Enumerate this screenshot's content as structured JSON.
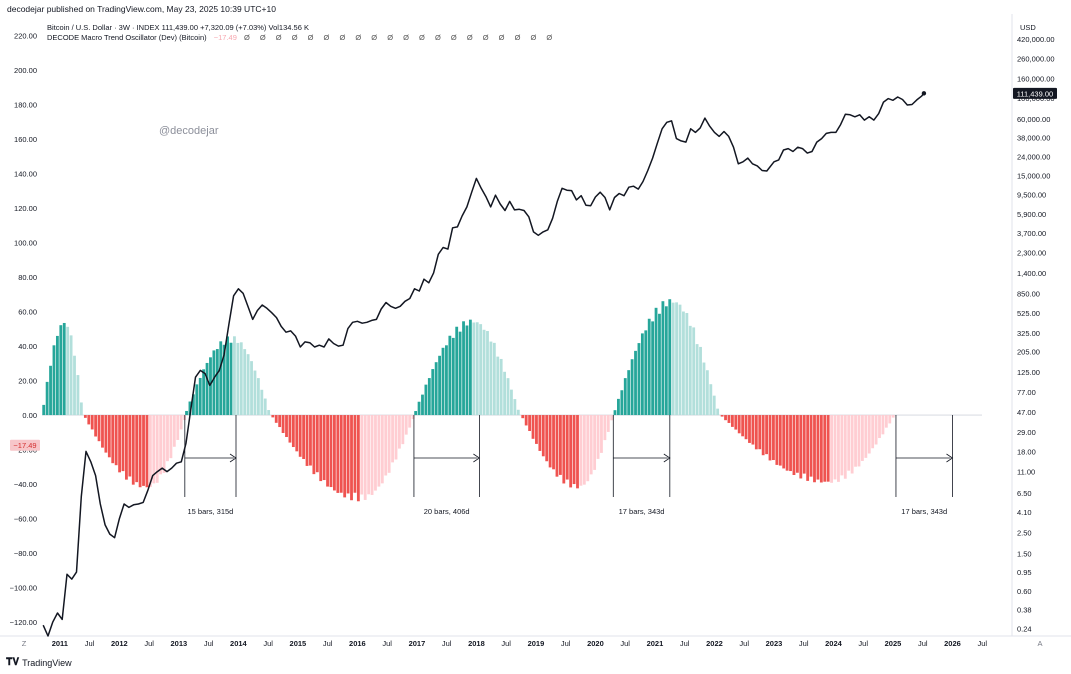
{
  "header": {
    "publisher_line": "decodejar published on TradingView.com, May 23, 2025 10:39 UTC+10",
    "logo_text": "TradingView"
  },
  "legend": {
    "price_line": "Bitcoin / U.S. Dollar · 3W · INDEX  111,439.00  +7,320.09 (+7.03%)  Vol134.56 K",
    "oscillator_name": "DECODE Macro Trend Oscillator (Dev) (Bitcoin)",
    "oscillator_value": "−17.49",
    "oscillator_extra": "Ø Ø Ø Ø Ø Ø Ø Ø Ø Ø Ø Ø Ø Ø Ø Ø Ø Ø Ø Ø"
  },
  "watermark": "@decodejar",
  "right_axis_currency": "USD",
  "colors": {
    "bull_strong": "#26a69a",
    "bull_weak": "#b2dfdb",
    "bear_strong": "#ef5350",
    "bear_weak": "#ffcdd2",
    "price_line": "#131722",
    "badge_dark": "#131722",
    "badge_red": "#f7c6c9"
  },
  "chart_data": {
    "type": "bar",
    "title": "DECODE Macro Trend Oscillator (Dev) (Bitcoin)",
    "left_axis": {
      "ticks": [
        "220.00",
        "200.00",
        "180.00",
        "160.00",
        "140.00",
        "120.00",
        "100.00",
        "80.00",
        "60.00",
        "40.00",
        "20.00",
        "0.00",
        "−20.00",
        "−40.00",
        "−60.00",
        "−80.00",
        "−100.00",
        "−120.00"
      ],
      "tick_values": [
        220,
        200,
        180,
        160,
        140,
        120,
        100,
        80,
        60,
        40,
        20,
        0,
        -20,
        -40,
        -60,
        -80,
        -100,
        -120
      ],
      "ylim": [
        -128,
        230
      ]
    },
    "right_axis": {
      "scale": "log",
      "ticks": [
        "420,000.00",
        "260,000.00",
        "160,000.00",
        "100,000.00",
        "60,000.00",
        "38,000.00",
        "24,000.00",
        "15,000.00",
        "9,500.00",
        "5,900.00",
        "3,700.00",
        "2,300.00",
        "1,400.00",
        "850.00",
        "525.00",
        "325.00",
        "205.00",
        "125.00",
        "77.00",
        "47.00",
        "29.00",
        "18.00",
        "11.00",
        "6.50",
        "4.10",
        "2.50",
        "1.50",
        "0.95",
        "0.60",
        "0.38",
        "0.24"
      ],
      "tick_values": [
        420000,
        260000,
        160000,
        100000,
        60000,
        38000,
        24000,
        15000,
        9500,
        5900,
        3700,
        2300,
        1400,
        850,
        525,
        325,
        205,
        125,
        77,
        47,
        29,
        18,
        11,
        6.5,
        4.1,
        2.5,
        1.5,
        0.95,
        0.6,
        0.38,
        0.24
      ],
      "ylim": [
        0.2,
        700000
      ],
      "last_price_label": "111,439.00"
    },
    "x_axis": {
      "labels": [
        "Z",
        "2011",
        "Jul",
        "2012",
        "Jul",
        "2013",
        "Jul",
        "2014",
        "Jul",
        "2015",
        "Jul",
        "2016",
        "Jul",
        "2017",
        "Jul",
        "2018",
        "Jul",
        "2019",
        "Jul",
        "2020",
        "Jul",
        "2021",
        "Jul",
        "2022",
        "Jul",
        "2023",
        "Jul",
        "2024",
        "Jul",
        "2025",
        "Jul",
        "2026",
        "Jul",
        "A"
      ],
      "label_dates": [
        null,
        2011.0,
        2011.5,
        2012.0,
        2012.5,
        2013.0,
        2013.5,
        2014.0,
        2014.5,
        2015.0,
        2015.5,
        2016.0,
        2016.5,
        2017.0,
        2017.5,
        2018.0,
        2018.5,
        2019.0,
        2019.5,
        2020.0,
        2020.5,
        2021.0,
        2021.5,
        2022.0,
        2022.5,
        2023.0,
        2023.5,
        2024.0,
        2024.5,
        2025.0,
        2025.5,
        2026.0,
        2026.5,
        null
      ],
      "range": [
        2010.7,
        2027.0
      ]
    },
    "oscillator_current": -17.49,
    "oscillator_phases": [
      {
        "start": 2010.7,
        "end": 2011.4,
        "kind": "bull",
        "peak": 55
      },
      {
        "start": 2011.4,
        "end": 2013.1,
        "kind": "bear",
        "peak": -43
      },
      {
        "start": 2013.1,
        "end": 2014.55,
        "kind": "bull",
        "peak": 46
      },
      {
        "start": 2014.55,
        "end": 2016.95,
        "kind": "bear",
        "peak": -50
      },
      {
        "start": 2016.95,
        "end": 2018.75,
        "kind": "bull",
        "peak": 56
      },
      {
        "start": 2018.75,
        "end": 2020.3,
        "kind": "bear",
        "peak": -43
      },
      {
        "start": 2020.3,
        "end": 2022.1,
        "kind": "bull",
        "peak": 68
      },
      {
        "start": 2022.1,
        "end": 2025.05,
        "kind": "bear",
        "peak": -40
      }
    ],
    "price_series": [
      [
        2010.72,
        0.26
      ],
      [
        2010.8,
        0.2
      ],
      [
        2010.88,
        0.28
      ],
      [
        2010.96,
        0.35
      ],
      [
        2011.04,
        0.3
      ],
      [
        2011.12,
        0.9
      ],
      [
        2011.2,
        0.8
      ],
      [
        2011.28,
        0.95
      ],
      [
        2011.36,
        6
      ],
      [
        2011.44,
        18
      ],
      [
        2011.52,
        14
      ],
      [
        2011.6,
        10
      ],
      [
        2011.68,
        5
      ],
      [
        2011.76,
        3
      ],
      [
        2011.84,
        2.4
      ],
      [
        2011.92,
        2.2
      ],
      [
        2012.0,
        3.5
      ],
      [
        2012.08,
        5
      ],
      [
        2012.16,
        4.6
      ],
      [
        2012.24,
        4.9
      ],
      [
        2012.32,
        5
      ],
      [
        2012.4,
        5.2
      ],
      [
        2012.48,
        7
      ],
      [
        2012.56,
        10
      ],
      [
        2012.64,
        11
      ],
      [
        2012.72,
        12
      ],
      [
        2012.8,
        11
      ],
      [
        2012.88,
        12
      ],
      [
        2012.96,
        13.5
      ],
      [
        2013.04,
        14
      ],
      [
        2013.12,
        22
      ],
      [
        2013.2,
        50
      ],
      [
        2013.28,
        110
      ],
      [
        2013.36,
        130
      ],
      [
        2013.44,
        120
      ],
      [
        2013.52,
        90
      ],
      [
        2013.6,
        110
      ],
      [
        2013.68,
        130
      ],
      [
        2013.76,
        190
      ],
      [
        2013.84,
        400
      ],
      [
        2013.92,
        800
      ],
      [
        2014.0,
        950
      ],
      [
        2014.08,
        850
      ],
      [
        2014.16,
        620
      ],
      [
        2014.24,
        450
      ],
      [
        2014.32,
        560
      ],
      [
        2014.4,
        640
      ],
      [
        2014.48,
        590
      ],
      [
        2014.56,
        530
      ],
      [
        2014.64,
        470
      ],
      [
        2014.72,
        380
      ],
      [
        2014.8,
        330
      ],
      [
        2014.88,
        340
      ],
      [
        2014.96,
        300
      ],
      [
        2015.04,
        230
      ],
      [
        2015.12,
        260
      ],
      [
        2015.2,
        255
      ],
      [
        2015.28,
        230
      ],
      [
        2015.36,
        240
      ],
      [
        2015.44,
        230
      ],
      [
        2015.52,
        280
      ],
      [
        2015.6,
        250
      ],
      [
        2015.68,
        235
      ],
      [
        2015.76,
        240
      ],
      [
        2015.84,
        360
      ],
      [
        2015.92,
        420
      ],
      [
        2016.0,
        430
      ],
      [
        2016.08,
        410
      ],
      [
        2016.16,
        420
      ],
      [
        2016.24,
        440
      ],
      [
        2016.32,
        450
      ],
      [
        2016.4,
        580
      ],
      [
        2016.48,
        680
      ],
      [
        2016.56,
        620
      ],
      [
        2016.64,
        590
      ],
      [
        2016.72,
        620
      ],
      [
        2016.8,
        700
      ],
      [
        2016.88,
        750
      ],
      [
        2016.96,
        950
      ],
      [
        2017.04,
        900
      ],
      [
        2017.12,
        1200
      ],
      [
        2017.2,
        1100
      ],
      [
        2017.28,
        1400
      ],
      [
        2017.36,
        2200
      ],
      [
        2017.44,
        2600
      ],
      [
        2017.52,
        2500
      ],
      [
        2017.6,
        4200
      ],
      [
        2017.68,
        4300
      ],
      [
        2017.76,
        5600
      ],
      [
        2017.84,
        7000
      ],
      [
        2017.92,
        10000
      ],
      [
        2018.0,
        14000
      ],
      [
        2018.08,
        11000
      ],
      [
        2018.16,
        9000
      ],
      [
        2018.24,
        7000
      ],
      [
        2018.32,
        9300
      ],
      [
        2018.4,
        7500
      ],
      [
        2018.48,
        6400
      ],
      [
        2018.56,
        8000
      ],
      [
        2018.64,
        6500
      ],
      [
        2018.72,
        6600
      ],
      [
        2018.8,
        6400
      ],
      [
        2018.88,
        5500
      ],
      [
        2018.96,
        3800
      ],
      [
        2019.04,
        3500
      ],
      [
        2019.12,
        3800
      ],
      [
        2019.2,
        4000
      ],
      [
        2019.28,
        5300
      ],
      [
        2019.36,
        8000
      ],
      [
        2019.44,
        11000
      ],
      [
        2019.52,
        10500
      ],
      [
        2019.6,
        10400
      ],
      [
        2019.68,
        8300
      ],
      [
        2019.76,
        9200
      ],
      [
        2019.84,
        7300
      ],
      [
        2019.92,
        7200
      ],
      [
        2020.0,
        8900
      ],
      [
        2020.08,
        10000
      ],
      [
        2020.16,
        8800
      ],
      [
        2020.24,
        6500
      ],
      [
        2020.32,
        8800
      ],
      [
        2020.4,
        9700
      ],
      [
        2020.48,
        9200
      ],
      [
        2020.56,
        11300
      ],
      [
        2020.64,
        11600
      ],
      [
        2020.72,
        10800
      ],
      [
        2020.8,
        13000
      ],
      [
        2020.88,
        17000
      ],
      [
        2020.96,
        23000
      ],
      [
        2021.04,
        33000
      ],
      [
        2021.12,
        47000
      ],
      [
        2021.2,
        55000
      ],
      [
        2021.28,
        57000
      ],
      [
        2021.36,
        37000
      ],
      [
        2021.44,
        35000
      ],
      [
        2021.52,
        34000
      ],
      [
        2021.6,
        47000
      ],
      [
        2021.68,
        43000
      ],
      [
        2021.76,
        48000
      ],
      [
        2021.84,
        61000
      ],
      [
        2021.92,
        50000
      ],
      [
        2022.0,
        43000
      ],
      [
        2022.08,
        39000
      ],
      [
        2022.16,
        44000
      ],
      [
        2022.24,
        39000
      ],
      [
        2022.32,
        30000
      ],
      [
        2022.4,
        20000
      ],
      [
        2022.48,
        21000
      ],
      [
        2022.56,
        23000
      ],
      [
        2022.64,
        20000
      ],
      [
        2022.72,
        19000
      ],
      [
        2022.8,
        17000
      ],
      [
        2022.88,
        16800
      ],
      [
        2023.0,
        21000
      ],
      [
        2023.08,
        22000
      ],
      [
        2023.16,
        28000
      ],
      [
        2023.24,
        29000
      ],
      [
        2023.32,
        27000
      ],
      [
        2023.4,
        30000
      ],
      [
        2023.48,
        29000
      ],
      [
        2023.56,
        26000
      ],
      [
        2023.64,
        27000
      ],
      [
        2023.72,
        34000
      ],
      [
        2023.8,
        37000
      ],
      [
        2023.88,
        42000
      ],
      [
        2023.96,
        43000
      ],
      [
        2024.04,
        43000
      ],
      [
        2024.12,
        52000
      ],
      [
        2024.2,
        67000
      ],
      [
        2024.28,
        66000
      ],
      [
        2024.36,
        63000
      ],
      [
        2024.44,
        66000
      ],
      [
        2024.52,
        58000
      ],
      [
        2024.6,
        63000
      ],
      [
        2024.68,
        58000
      ],
      [
        2024.76,
        68000
      ],
      [
        2024.84,
        90000
      ],
      [
        2024.92,
        98000
      ],
      [
        2025.0,
        94000
      ],
      [
        2025.08,
        102000
      ],
      [
        2025.16,
        96000
      ],
      [
        2025.24,
        84000
      ],
      [
        2025.32,
        85000
      ],
      [
        2025.4,
        95000
      ],
      [
        2025.48,
        104000
      ],
      [
        2025.52,
        111439
      ]
    ],
    "cycle_annotations": [
      {
        "label": "15 bars, 315d",
        "start": 2013.1,
        "end": 2013.96
      },
      {
        "label": "20 bars, 406d",
        "start": 2016.95,
        "end": 2018.05
      },
      {
        "label": "17 bars, 343d",
        "start": 2020.3,
        "end": 2021.25
      },
      {
        "label": "17 bars, 343d",
        "start": 2025.05,
        "end": 2026.0
      }
    ]
  }
}
